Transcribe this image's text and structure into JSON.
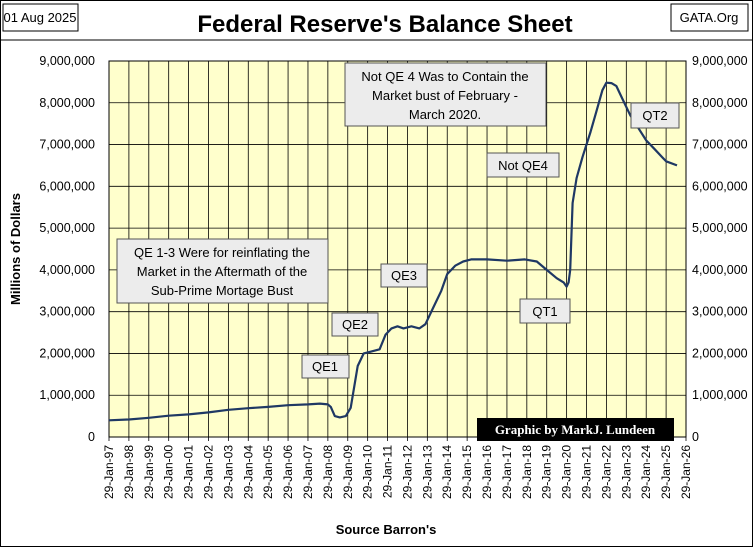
{
  "header": {
    "date": "01 Aug 2025",
    "title": "Federal Reserve's Balance Sheet",
    "source_site": "GATA.Org"
  },
  "credit": "Graphic by MarkJ. Lundeen",
  "colors": {
    "plot_bg": "#ffffcc",
    "line": "#1f3864",
    "grid": "#000000",
    "box_bg": "#ececec",
    "credit_bg": "#000000"
  },
  "chart_data": {
    "type": "line",
    "title": "Federal Reserve's Balance Sheet",
    "xlabel": "Source Barron's",
    "ylabel": "Millions  of  Dollars",
    "ylim": [
      0,
      9000000
    ],
    "y_ticks": [
      "0",
      "1,000,000",
      "2,000,000",
      "3,000,000",
      "4,000,000",
      "5,000,000",
      "6,000,000",
      "7,000,000",
      "8,000,000",
      "9,000,000"
    ],
    "y_tick_values": [
      0,
      1000000,
      2000000,
      3000000,
      4000000,
      5000000,
      6000000,
      7000000,
      8000000,
      9000000
    ],
    "x_ticks": [
      "29-Jan-97",
      "29-Jan-98",
      "29-Jan-99",
      "29-Jan-00",
      "29-Jan-01",
      "29-Jan-02",
      "29-Jan-03",
      "29-Jan-04",
      "29-Jan-05",
      "29-Jan-06",
      "29-Jan-07",
      "29-Jan-08",
      "29-Jan-09",
      "29-Jan-10",
      "29-Jan-11",
      "29-Jan-12",
      "29-Jan-13",
      "29-Jan-14",
      "29-Jan-15",
      "29-Jan-16",
      "29-Jan-17",
      "29-Jan-18",
      "29-Jan-19",
      "29-Jan-20",
      "29-Jan-21",
      "29-Jan-22",
      "29-Jan-23",
      "29-Jan-24",
      "29-Jan-25",
      "29-Jan-26"
    ],
    "grid": true,
    "axes": "left and right y-axes with identical scale",
    "series": [
      {
        "x": [
          1997.0,
          1998.0,
          1999.0,
          2000.0,
          2001.0,
          2002.0,
          2003.0,
          2004.0,
          2005.0,
          2006.0,
          2007.0,
          2007.6,
          2008.0,
          2008.15,
          2008.35,
          2008.6,
          2008.9,
          2009.15,
          2009.5,
          2009.8,
          2010.2,
          2010.6,
          2010.9,
          2011.2,
          2011.5,
          2011.8,
          2012.2,
          2012.6,
          2012.9,
          2013.3,
          2013.7,
          2014.0,
          2014.4,
          2014.8,
          2015.2,
          2016.0,
          2017.0,
          2017.9,
          2018.5,
          2019.0,
          2019.5,
          2019.85,
          2020.0,
          2020.1,
          2020.18,
          2020.3,
          2020.5,
          2020.8,
          2021.2,
          2021.5,
          2021.8,
          2022.0,
          2022.25,
          2022.5,
          2022.8,
          2023.2,
          2023.6,
          2024.0,
          2024.4,
          2024.8,
          2025.0,
          2025.55
        ],
        "values": [
          400000,
          420000,
          460000,
          510000,
          540000,
          590000,
          650000,
          690000,
          720000,
          760000,
          780000,
          800000,
          780000,
          720000,
          500000,
          470000,
          500000,
          700000,
          1700000,
          2000000,
          2050000,
          2100000,
          2450000,
          2600000,
          2650000,
          2600000,
          2650000,
          2600000,
          2700000,
          3100000,
          3500000,
          3900000,
          4100000,
          4200000,
          4250000,
          4250000,
          4220000,
          4250000,
          4200000,
          4000000,
          3800000,
          3700000,
          3600000,
          3700000,
          4000000,
          5600000,
          6200000,
          6700000,
          7300000,
          7800000,
          8300000,
          8480000,
          8470000,
          8400000,
          8100000,
          7700000,
          7400000,
          7100000,
          6900000,
          6700000,
          6600000,
          6500000
        ]
      }
    ],
    "annotations": [
      {
        "lines": [
          "Not QE 4 Was to Contain the",
          "Market bust of February -",
          "March  2020."
        ]
      },
      {
        "lines": [
          "QE 1-3  Were  for reinflating the",
          "Market  in the Aftermath  of the",
          "Sub-Prime Mortage  Bust"
        ]
      },
      {
        "lines": [
          "QE1"
        ]
      },
      {
        "lines": [
          "QE2"
        ]
      },
      {
        "lines": [
          "QE3"
        ]
      },
      {
        "lines": [
          "Not QE4"
        ]
      },
      {
        "lines": [
          "QT1"
        ]
      },
      {
        "lines": [
          "QT2"
        ]
      }
    ]
  }
}
